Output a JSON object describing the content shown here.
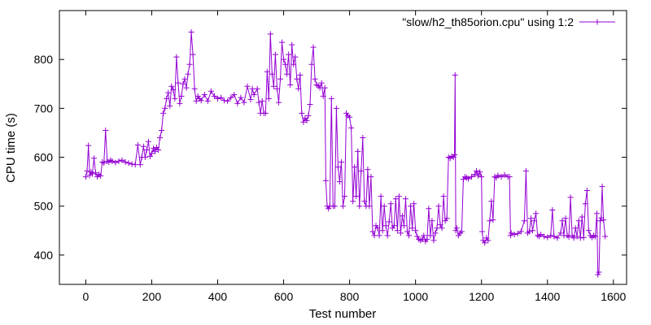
{
  "chart_data": {
    "type": "line",
    "xlabel": "Test number",
    "ylabel": "CPU time (s)",
    "xlim": [
      -80,
      1640
    ],
    "ylim": [
      340,
      900
    ],
    "xticks": [
      0,
      200,
      400,
      600,
      800,
      1000,
      1200,
      1400,
      1600
    ],
    "xtick_labels": [
      "0",
      "200",
      "400",
      "600",
      "800",
      "1000",
      "1200",
      "1400",
      "1600"
    ],
    "yticks": [
      400,
      500,
      600,
      700,
      800
    ],
    "ytick_labels": [
      "400",
      "500",
      "600",
      "700",
      "800"
    ],
    "grid": false,
    "legend_position": "top-right",
    "colors": {
      "series": "#9400d3",
      "axes": "#000000",
      "background": "#ffffff"
    },
    "marker": "plus",
    "series": [
      {
        "name": "\"slow/h2_th85orion.cpu\" using 1:2",
        "points": [
          [
            0,
            560
          ],
          [
            4,
            572
          ],
          [
            8,
            624
          ],
          [
            12,
            563
          ],
          [
            16,
            570
          ],
          [
            20,
            566
          ],
          [
            25,
            598
          ],
          [
            30,
            568
          ],
          [
            35,
            560
          ],
          [
            40,
            565
          ],
          [
            45,
            562
          ],
          [
            50,
            590
          ],
          [
            55,
            588
          ],
          [
            60,
            655
          ],
          [
            65,
            592
          ],
          [
            70,
            590
          ],
          [
            75,
            594
          ],
          [
            80,
            592
          ],
          [
            90,
            589
          ],
          [
            100,
            592
          ],
          [
            110,
            594
          ],
          [
            120,
            590
          ],
          [
            130,
            588
          ],
          [
            140,
            586
          ],
          [
            150,
            585
          ],
          [
            158,
            625
          ],
          [
            165,
            585
          ],
          [
            170,
            600
          ],
          [
            175,
            622
          ],
          [
            180,
            600
          ],
          [
            185,
            615
          ],
          [
            190,
            632
          ],
          [
            195,
            602
          ],
          [
            200,
            608
          ],
          [
            205,
            618
          ],
          [
            210,
            612
          ],
          [
            215,
            620
          ],
          [
            220,
            615
          ],
          [
            225,
            640
          ],
          [
            230,
            655
          ],
          [
            235,
            690
          ],
          [
            240,
            700
          ],
          [
            245,
            720
          ],
          [
            250,
            732
          ],
          [
            255,
            705
          ],
          [
            260,
            745
          ],
          [
            265,
            738
          ],
          [
            270,
            720
          ],
          [
            275,
            805
          ],
          [
            280,
            752
          ],
          [
            285,
            710
          ],
          [
            290,
            725
          ],
          [
            295,
            750
          ],
          [
            300,
            760
          ],
          [
            305,
            742
          ],
          [
            310,
            770
          ],
          [
            315,
            790
          ],
          [
            320,
            856
          ],
          [
            325,
            810
          ],
          [
            330,
            740
          ],
          [
            335,
            715
          ],
          [
            340,
            725
          ],
          [
            345,
            720
          ],
          [
            350,
            716
          ],
          [
            360,
            728
          ],
          [
            370,
            715
          ],
          [
            380,
            735
          ],
          [
            390,
            725
          ],
          [
            400,
            720
          ],
          [
            410,
            722
          ],
          [
            420,
            716
          ],
          [
            430,
            715
          ],
          [
            440,
            722
          ],
          [
            450,
            728
          ],
          [
            460,
            710
          ],
          [
            470,
            722
          ],
          [
            480,
            712
          ],
          [
            490,
            745
          ],
          [
            500,
            718
          ],
          [
            505,
            740
          ],
          [
            510,
            728
          ],
          [
            520,
            740
          ],
          [
            525,
            712
          ],
          [
            530,
            690
          ],
          [
            535,
            715
          ],
          [
            540,
            690
          ],
          [
            545,
            690
          ],
          [
            550,
            775
          ],
          [
            555,
            720
          ],
          [
            560,
            852
          ],
          [
            565,
            770
          ],
          [
            570,
            745
          ],
          [
            575,
            810
          ],
          [
            580,
            740
          ],
          [
            585,
            712
          ],
          [
            590,
            760
          ],
          [
            595,
            835
          ],
          [
            600,
            800
          ],
          [
            605,
            790
          ],
          [
            610,
            770
          ],
          [
            615,
            810
          ],
          [
            620,
            748
          ],
          [
            625,
            830
          ],
          [
            630,
            790
          ],
          [
            635,
            805
          ],
          [
            640,
            760
          ],
          [
            645,
            740
          ],
          [
            650,
            768
          ],
          [
            655,
            690
          ],
          [
            660,
            672
          ],
          [
            665,
            680
          ],
          [
            670,
            675
          ],
          [
            675,
            685
          ],
          [
            680,
            708
          ],
          [
            685,
            790
          ],
          [
            690,
            825
          ],
          [
            695,
            760
          ],
          [
            700,
            748
          ],
          [
            705,
            746
          ],
          [
            710,
            742
          ],
          [
            715,
            752
          ],
          [
            720,
            725
          ],
          [
            725,
            742
          ],
          [
            728,
            552
          ],
          [
            732,
            500
          ],
          [
            736,
            495
          ],
          [
            740,
            500
          ],
          [
            745,
            720
          ],
          [
            750,
            500
          ],
          [
            755,
            500
          ],
          [
            760,
            700
          ],
          [
            765,
            580
          ],
          [
            770,
            550
          ],
          [
            775,
            590
          ],
          [
            780,
            500
          ],
          [
            785,
            520
          ],
          [
            790,
            690
          ],
          [
            795,
            685
          ],
          [
            800,
            682
          ],
          [
            805,
            660
          ],
          [
            810,
            510
          ],
          [
            815,
            580
          ],
          [
            820,
            520
          ],
          [
            825,
            612
          ],
          [
            830,
            500
          ],
          [
            835,
            572
          ],
          [
            840,
            640
          ],
          [
            845,
            510
          ],
          [
            850,
            500
          ],
          [
            855,
            575
          ],
          [
            860,
            500
          ],
          [
            865,
            560
          ],
          [
            870,
            448
          ],
          [
            875,
            440
          ],
          [
            880,
            460
          ],
          [
            885,
            455
          ],
          [
            890,
            440
          ],
          [
            895,
            520
          ],
          [
            900,
            450
          ],
          [
            905,
            500
          ],
          [
            910,
            460
          ],
          [
            915,
            440
          ],
          [
            920,
            468
          ],
          [
            925,
            505
          ],
          [
            930,
            455
          ],
          [
            935,
            460
          ],
          [
            940,
            515
          ],
          [
            945,
            450
          ],
          [
            950,
            520
          ],
          [
            955,
            445
          ],
          [
            960,
            480
          ],
          [
            965,
            460
          ],
          [
            970,
            515
          ],
          [
            975,
            448
          ],
          [
            980,
            440
          ],
          [
            985,
            500
          ],
          [
            990,
            455
          ],
          [
            995,
            505
          ],
          [
            1000,
            450
          ],
          [
            1005,
            438
          ],
          [
            1010,
            432
          ],
          [
            1015,
            430
          ],
          [
            1020,
            432
          ],
          [
            1025,
            440
          ],
          [
            1030,
            428
          ],
          [
            1035,
            432
          ],
          [
            1040,
            495
          ],
          [
            1045,
            440
          ],
          [
            1050,
            470
          ],
          [
            1055,
            430
          ],
          [
            1060,
            445
          ],
          [
            1065,
            455
          ],
          [
            1070,
            500
          ],
          [
            1075,
            462
          ],
          [
            1080,
            455
          ],
          [
            1085,
            520
          ],
          [
            1090,
            470
          ],
          [
            1095,
            475
          ],
          [
            1100,
            600
          ],
          [
            1105,
            598
          ],
          [
            1110,
            602
          ],
          [
            1115,
            600
          ],
          [
            1118,
            605
          ],
          [
            1120,
            768
          ],
          [
            1122,
            450
          ],
          [
            1125,
            455
          ],
          [
            1130,
            440
          ],
          [
            1135,
            445
          ],
          [
            1140,
            448
          ],
          [
            1145,
            555
          ],
          [
            1150,
            560
          ],
          [
            1155,
            558
          ],
          [
            1160,
            556
          ],
          [
            1170,
            560
          ],
          [
            1180,
            565
          ],
          [
            1185,
            572
          ],
          [
            1190,
            562
          ],
          [
            1195,
            570
          ],
          [
            1200,
            560
          ],
          [
            1202,
            448
          ],
          [
            1205,
            430
          ],
          [
            1210,
            425
          ],
          [
            1215,
            435
          ],
          [
            1220,
            430
          ],
          [
            1225,
            470
          ],
          [
            1230,
            510
          ],
          [
            1235,
            472
          ],
          [
            1240,
            560
          ],
          [
            1245,
            558
          ],
          [
            1250,
            563
          ],
          [
            1260,
            560
          ],
          [
            1270,
            564
          ],
          [
            1280,
            560
          ],
          [
            1285,
            560
          ],
          [
            1288,
            440
          ],
          [
            1290,
            445
          ],
          [
            1300,
            442
          ],
          [
            1310,
            444
          ],
          [
            1320,
            448
          ],
          [
            1330,
            470
          ],
          [
            1335,
            572
          ],
          [
            1340,
            445
          ],
          [
            1345,
            448
          ],
          [
            1350,
            475
          ],
          [
            1355,
            450
          ],
          [
            1360,
            470
          ],
          [
            1365,
            485
          ],
          [
            1370,
            440
          ],
          [
            1375,
            438
          ],
          [
            1380,
            442
          ],
          [
            1390,
            438
          ],
          [
            1400,
            436
          ],
          [
            1410,
            440
          ],
          [
            1415,
            492
          ],
          [
            1420,
            438
          ],
          [
            1430,
            435
          ],
          [
            1440,
            445
          ],
          [
            1445,
            470
          ],
          [
            1450,
            440
          ],
          [
            1455,
            475
          ],
          [
            1460,
            440
          ],
          [
            1465,
            437
          ],
          [
            1470,
            518
          ],
          [
            1475,
            440
          ],
          [
            1480,
            435
          ],
          [
            1485,
            455
          ],
          [
            1490,
            438
          ],
          [
            1495,
            470
          ],
          [
            1500,
            435
          ],
          [
            1505,
            478
          ],
          [
            1510,
            436
          ],
          [
            1515,
            505
          ],
          [
            1520,
            532
          ],
          [
            1525,
            450
          ],
          [
            1530,
            440
          ],
          [
            1535,
            436
          ],
          [
            1540,
            440
          ],
          [
            1545,
            438
          ],
          [
            1550,
            485
          ],
          [
            1553,
            360
          ],
          [
            1556,
            365
          ],
          [
            1560,
            470
          ],
          [
            1563,
            476
          ],
          [
            1566,
            540
          ],
          [
            1570,
            472
          ],
          [
            1575,
            438
          ]
        ]
      }
    ]
  }
}
